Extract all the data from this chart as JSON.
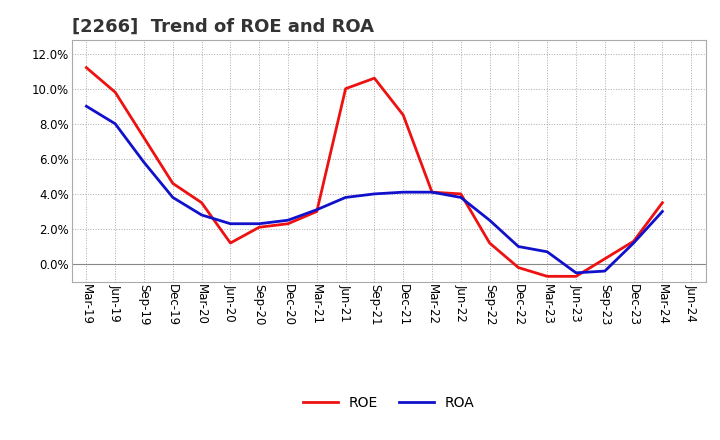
{
  "title": "[2266]  Trend of ROE and ROA",
  "x_labels": [
    "Mar-19",
    "Jun-19",
    "Sep-19",
    "Dec-19",
    "Mar-20",
    "Jun-20",
    "Sep-20",
    "Dec-20",
    "Mar-21",
    "Jun-21",
    "Sep-21",
    "Dec-21",
    "Mar-22",
    "Jun-22",
    "Sep-22",
    "Dec-22",
    "Mar-23",
    "Jun-23",
    "Sep-23",
    "Dec-23",
    "Mar-24",
    "Jun-24"
  ],
  "roe": [
    11.2,
    9.8,
    7.2,
    4.6,
    3.5,
    1.2,
    2.1,
    2.3,
    3.0,
    10.0,
    10.6,
    8.5,
    4.1,
    4.0,
    1.2,
    -0.2,
    -0.7,
    -0.7,
    0.3,
    1.3,
    3.5,
    null
  ],
  "roa": [
    9.0,
    8.0,
    5.8,
    3.8,
    2.8,
    2.3,
    2.3,
    2.5,
    3.1,
    3.8,
    4.0,
    4.1,
    4.1,
    3.8,
    2.5,
    1.0,
    0.7,
    -0.5,
    -0.4,
    1.2,
    3.0,
    null
  ],
  "roe_color": "#EE1111",
  "roa_color": "#1111CC",
  "ylim": [
    -1.0,
    12.8
  ],
  "yticks": [
    0.0,
    2.0,
    4.0,
    6.0,
    8.0,
    10.0,
    12.0
  ],
  "background_color": "#FFFFFF",
  "grid_color": "#AAAAAA",
  "line_width": 2.0,
  "title_fontsize": 13,
  "tick_fontsize": 8.5,
  "legend_fontsize": 10
}
